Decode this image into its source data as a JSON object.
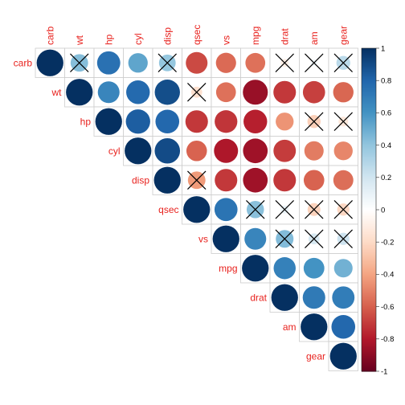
{
  "chart_data": {
    "type": "heatmap",
    "subtype": "correlation-matrix-upper-circles",
    "variables": [
      "carb",
      "wt",
      "hp",
      "cyl",
      "disp",
      "qsec",
      "vs",
      "mpg",
      "drat",
      "am",
      "gear"
    ],
    "matrix": [
      [
        1.0,
        0.43,
        0.75,
        0.53,
        0.39,
        -0.66,
        -0.57,
        -0.55,
        -0.09,
        0.06,
        0.27
      ],
      [
        0.43,
        1.0,
        0.66,
        0.78,
        0.89,
        -0.17,
        -0.55,
        -0.87,
        -0.71,
        -0.69,
        -0.58
      ],
      [
        0.75,
        0.66,
        1.0,
        0.83,
        0.79,
        -0.71,
        -0.72,
        -0.78,
        -0.45,
        -0.24,
        -0.13
      ],
      [
        0.53,
        0.78,
        0.83,
        1.0,
        0.9,
        -0.59,
        -0.81,
        -0.85,
        -0.7,
        -0.52,
        -0.49
      ],
      [
        0.39,
        0.89,
        0.79,
        0.9,
        1.0,
        -0.43,
        -0.71,
        -0.85,
        -0.71,
        -0.59,
        -0.56
      ],
      [
        -0.66,
        -0.17,
        -0.71,
        -0.59,
        -0.43,
        1.0,
        0.74,
        0.42,
        0.09,
        -0.23,
        -0.21
      ],
      [
        -0.57,
        -0.55,
        -0.72,
        -0.81,
        -0.71,
        0.74,
        1.0,
        0.66,
        0.44,
        0.17,
        0.21
      ],
      [
        -0.55,
        -0.87,
        -0.78,
        -0.85,
        -0.85,
        0.42,
        0.66,
        1.0,
        0.68,
        0.6,
        0.48
      ],
      [
        -0.09,
        -0.71,
        -0.45,
        -0.7,
        -0.71,
        0.09,
        0.44,
        0.68,
        1.0,
        0.71,
        0.7
      ],
      [
        0.06,
        -0.69,
        -0.24,
        -0.52,
        -0.59,
        -0.23,
        0.17,
        0.6,
        0.71,
        1.0,
        0.79
      ],
      [
        0.27,
        -0.58,
        -0.13,
        -0.49,
        -0.56,
        -0.21,
        0.21,
        0.48,
        0.7,
        0.79,
        1.0
      ]
    ],
    "insignificant": [
      [
        "carb",
        "wt"
      ],
      [
        "carb",
        "disp"
      ],
      [
        "carb",
        "drat"
      ],
      [
        "carb",
        "am"
      ],
      [
        "carb",
        "gear"
      ],
      [
        "wt",
        "qsec"
      ],
      [
        "hp",
        "am"
      ],
      [
        "hp",
        "gear"
      ],
      [
        "disp",
        "qsec"
      ],
      [
        "qsec",
        "mpg"
      ],
      [
        "qsec",
        "drat"
      ],
      [
        "qsec",
        "am"
      ],
      [
        "qsec",
        "gear"
      ],
      [
        "vs",
        "drat"
      ],
      [
        "vs",
        "am"
      ],
      [
        "vs",
        "gear"
      ]
    ],
    "colorbar": {
      "range": [
        -1,
        1
      ],
      "ticks": [
        "1",
        "0.8",
        "0.6",
        "0.4",
        "0.2",
        "0",
        "-0.2",
        "-0.4",
        "-0.6",
        "-0.8",
        "-1"
      ],
      "palette": [
        "#67001f",
        "#b2182b",
        "#d6604d",
        "#f4a582",
        "#fddbc7",
        "#ffffff",
        "#d1e5f0",
        "#92c5de",
        "#4393c3",
        "#2166ac",
        "#053061"
      ]
    },
    "label_color": "#e8221e",
    "insignificant_mark": "cross"
  }
}
